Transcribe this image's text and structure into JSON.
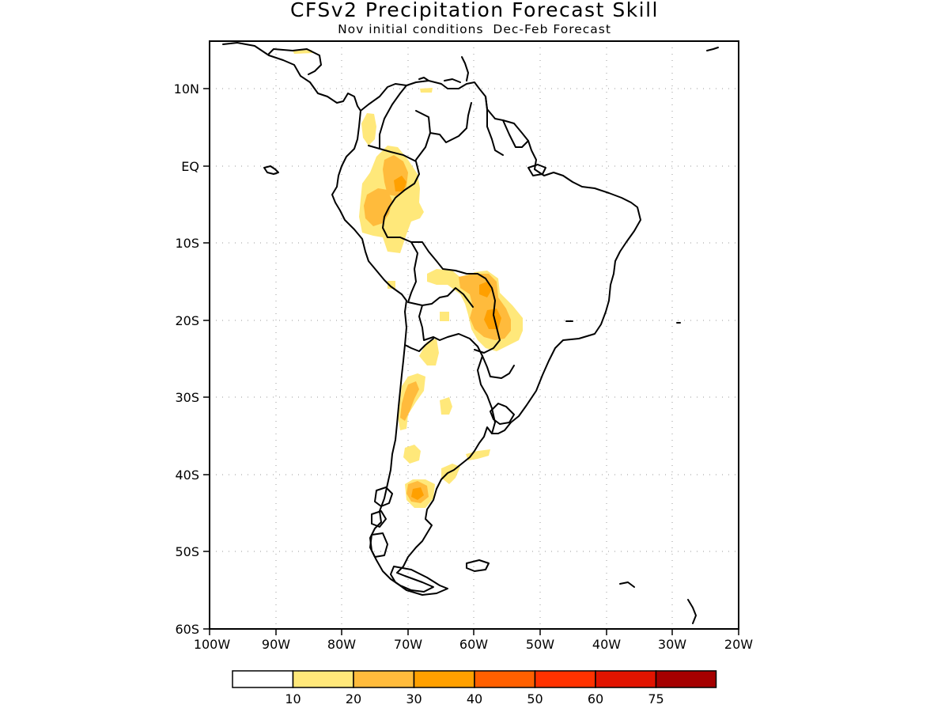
{
  "header": {
    "title": "CFSv2 Precipitation Forecast Skill",
    "subtitle": "Nov initial conditions  Dec-Feb Forecast"
  },
  "map": {
    "region": "South America",
    "lon_range": [
      -100,
      -20
    ],
    "lat_range": [
      -60,
      15
    ],
    "lat_ticks": [
      "10N",
      "EQ",
      "10S",
      "20S",
      "30S",
      "40S",
      "50S",
      "60S"
    ],
    "lon_ticks": [
      "100W",
      "90W",
      "80W",
      "70W",
      "60W",
      "50W",
      "40W",
      "30W",
      "20W"
    ],
    "grid": "dotted",
    "land_color": "#ffffff",
    "coastline_color": "#000000"
  },
  "colorbar": {
    "labels": [
      "10",
      "20",
      "30",
      "40",
      "50",
      "60",
      "75"
    ],
    "colors": [
      "#ffffff",
      "#ffe87a",
      "#ffbb3c",
      "#ffa000",
      "#ff6000",
      "#ff3200",
      "#e11400",
      "#a50000"
    ]
  }
}
